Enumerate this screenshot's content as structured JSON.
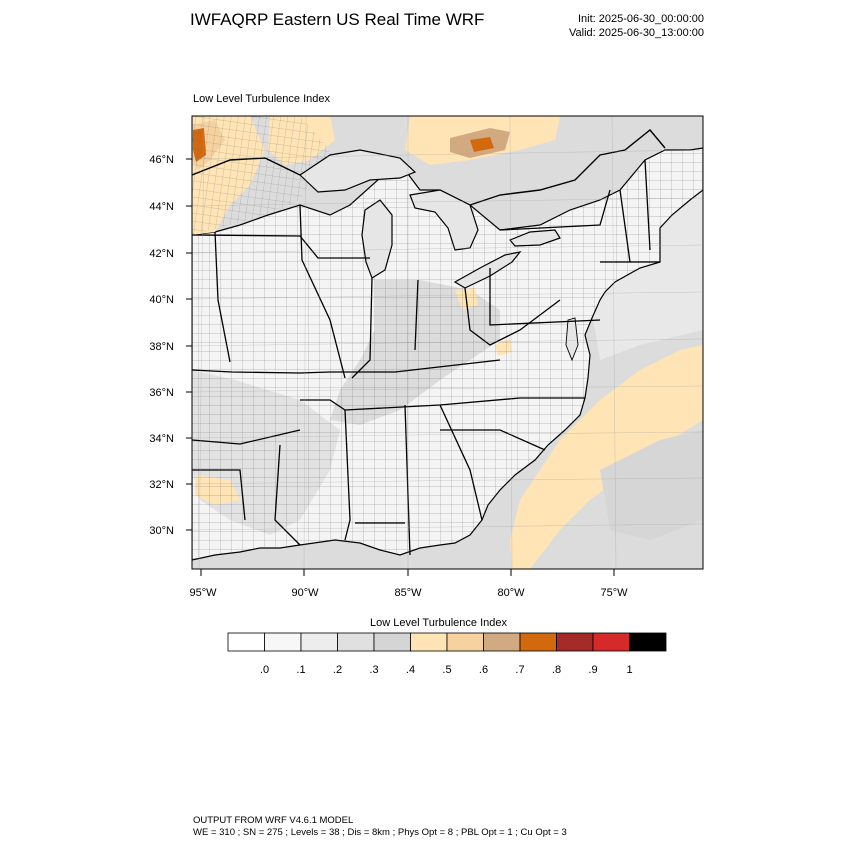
{
  "header": {
    "title": "IWFAQRP Eastern US Real Time WRF",
    "init": "Init: 2025-06-30_00:00:00",
    "valid": "Valid: 2025-06-30_13:00:00"
  },
  "panel": {
    "title": "Low Level Turbulence Index"
  },
  "map": {
    "lat_labels": [
      "46°N",
      "44°N",
      "42°N",
      "40°N",
      "38°N",
      "36°N",
      "34°N",
      "32°N",
      "30°N"
    ],
    "lon_labels": [
      "95°W",
      "90°W",
      "85°W",
      "80°W",
      "75°W"
    ],
    "background_color": "#dcdcdc",
    "land_color": "#f4f4f4",
    "water_color": "#e6e6e6"
  },
  "colorbar": {
    "title": "Low Level Turbulence Index",
    "tick_labels": [
      ".0",
      ".1",
      ".2",
      ".3",
      ".4",
      ".5",
      ".6",
      ".7",
      ".8",
      ".9",
      "1"
    ],
    "colors": [
      "#ffffff",
      "#f7f7f7",
      "#ededed",
      "#e0e0e0",
      "#d5d5d5",
      "#ffe4b5",
      "#f5d2a0",
      "#d2aa82",
      "#d2690f",
      "#a52a2a",
      "#d62a2a",
      "#000000"
    ]
  },
  "footer": {
    "line1": "OUTPUT FROM WRF V4.6.1 MODEL",
    "line2": "WE = 310 ; SN = 275 ; Levels = 38 ; Dis = 8km ; Phys Opt = 8 ; PBL Opt = 1 ; Cu Opt = 3"
  }
}
